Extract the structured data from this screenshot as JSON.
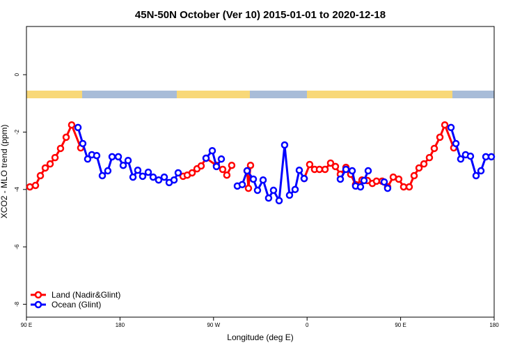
{
  "chart_data": {
    "type": "line",
    "title": "45N-50N October (Ver 10)   2015-01-01 to 2020-12-18",
    "x_label": "Longitude (deg E)",
    "y_label": "XCO2 - MLO trend (ppm)",
    "xlim": [
      90,
      540
    ],
    "xticks": [
      {
        "value": 90,
        "label": "90 E"
      },
      {
        "value": 180,
        "label": "180"
      },
      {
        "value": 270,
        "label": "90 W"
      },
      {
        "value": 360,
        "label": "0"
      },
      {
        "value": 450,
        "label": "90 E"
      },
      {
        "value": 540,
        "label": "180"
      }
    ],
    "ylim": [
      -8.45,
      1.68
    ],
    "yticks": [
      -8,
      -6,
      -4,
      -2,
      0
    ],
    "legend": "bottom-left",
    "series": [
      {
        "name": "Land (Nadir&Glint)",
        "color": "#ff0000",
        "x": [
          93.3,
          98.7,
          103.4,
          108.1,
          112.8,
          117.5,
          122.8,
          128.2,
          133.5,
          142.2,
          null,
          240.7,
          244.7,
          249.4,
          254.1,
          258.1,
          262.8,
          272.8,
          278.8,
          282.8,
          287.5,
          null,
          302.3,
          303.6,
          305.6,
          null,
          357.2,
          362.5,
          367.2,
          371.9,
          377.3,
          382.6,
          387.3,
          392.0,
          397.4,
          402.0,
          406.7,
          412.8,
          418.1,
          422.8,
          426.8,
          432.2,
          437.5,
          442.9,
          448.2,
          452.9,
          458.3,
          463.0,
          467.7,
          472.4,
          477.7,
          482.4,
          487.8,
          492.5,
          501.1
        ],
        "values": [
          -3.91,
          -3.86,
          -3.52,
          -3.25,
          -3.11,
          -2.89,
          -2.57,
          -2.18,
          -1.75,
          -2.55,
          null,
          -3.54,
          -3.5,
          -3.42,
          -3.28,
          -3.18,
          -2.91,
          -3.16,
          -3.3,
          -3.5,
          -3.16,
          null,
          -3.35,
          -3.96,
          -3.16,
          null,
          -3.62,
          -3.13,
          -3.3,
          -3.3,
          -3.3,
          -3.08,
          -3.2,
          -3.47,
          -3.23,
          -3.47,
          -3.83,
          -3.67,
          -3.69,
          -3.79,
          -3.71,
          -3.71,
          -3.91,
          -3.57,
          -3.64,
          -3.91,
          -3.91,
          -3.52,
          -3.25,
          -3.11,
          -2.89,
          -2.57,
          -2.18,
          -1.75,
          -2.55
        ]
      },
      {
        "name": "Ocean (Glint)",
        "color": "#0000ff",
        "x": [
          139.6,
          144.2,
          148.9,
          152.9,
          157.6,
          163.0,
          168.3,
          172.4,
          178.4,
          183.1,
          187.8,
          192.5,
          197.1,
          201.8,
          207.2,
          211.9,
          217.2,
          222.6,
          227.3,
          232.0,
          236.0,
          null,
          262.8,
          268.8,
          272.8,
          277.5,
          null,
          292.9,
          297.6,
          302.3,
          308.3,
          312.3,
          317.7,
          323.0,
          327.7,
          333.1,
          338.4,
          343.1,
          348.5,
          352.5,
          357.2,
          null,
          392.0,
          397.4,
          403.4,
          406.7,
          411.4,
          414.8,
          418.8,
          null,
          434.2,
          437.5,
          null,
          498.5,
          503.2,
          507.8,
          512.5,
          517.2,
          522.6,
          527.3,
          532.0,
          537.3
        ],
        "values": [
          -1.84,
          -2.4,
          -2.94,
          -2.79,
          -2.82,
          -3.52,
          -3.35,
          -2.86,
          -2.86,
          -3.16,
          -2.99,
          -3.57,
          -3.33,
          -3.54,
          -3.4,
          -3.57,
          -3.67,
          -3.57,
          -3.76,
          -3.67,
          -3.42,
          null,
          -2.91,
          -2.65,
          -3.2,
          -2.94,
          null,
          -3.88,
          -3.83,
          -3.35,
          -3.64,
          -4.03,
          -3.67,
          -4.3,
          -4.03,
          -4.39,
          -2.45,
          -4.2,
          -4.0,
          -3.33,
          -3.62,
          null,
          -3.64,
          -3.3,
          -3.35,
          -3.88,
          -3.91,
          -3.69,
          -3.35,
          null,
          -3.74,
          -3.96,
          null,
          -1.84,
          -2.4,
          -2.94,
          -2.79,
          -2.84,
          -3.52,
          -3.35,
          -2.86,
          -2.86
        ]
      }
    ]
  }
}
